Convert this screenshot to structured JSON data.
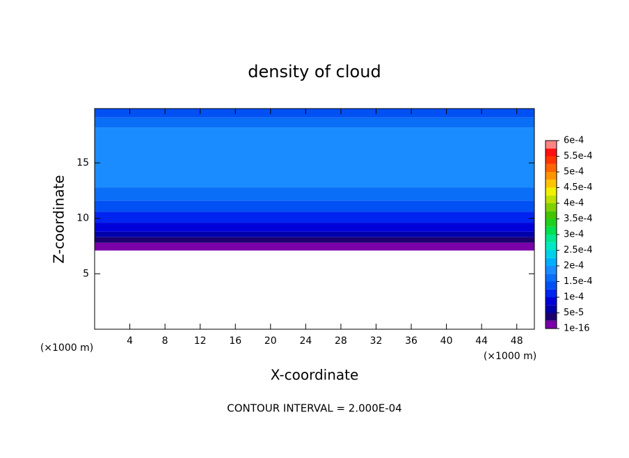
{
  "chart_data": {
    "type": "contour",
    "title": "density of cloud",
    "x_label": "X-coordinate",
    "y_label": "Z-coordinate",
    "x_unit": "(×1000 m)",
    "y_unit": "(×1000 m)",
    "footer": "CONTOUR INTERVAL = 2.000E-04",
    "xlim": [
      0,
      50
    ],
    "xticks": [
      4,
      8,
      12,
      16,
      20,
      24,
      28,
      32,
      36,
      40,
      44,
      48
    ],
    "ylim": [
      0,
      19.9
    ],
    "yticks": [
      5,
      10,
      15
    ],
    "profile": {
      "z": [
        0,
        7.1,
        7.8,
        8.3,
        8.8,
        9.6,
        10.6,
        11.6,
        12.8,
        18.2,
        19.1,
        19.9
      ],
      "values": [
        null,
        1e-05,
        3.5e-05,
        6e-05,
        8.5e-05,
        0.00011,
        0.000135,
        0.00016,
        0.000185,
        0.00016,
        0.000135
      ]
    },
    "clim": [
      1e-16,
      0.0006
    ],
    "colors": [
      "#7a00a8",
      "#1c0070",
      "#0000a8",
      "#0000d8",
      "#0024f0",
      "#0050f4",
      "#0a6ef6",
      "#1a8cff",
      "#00b0ff",
      "#00d0e8",
      "#00e8c4",
      "#00e890",
      "#00e050",
      "#20d020",
      "#44c400",
      "#80d000",
      "#c0e000",
      "#f0f000",
      "#ffc400",
      "#ff9400",
      "#ff6400",
      "#ff3400",
      "#ff1010",
      "#ff8484"
    ],
    "colorbar_ticks": [
      {
        "value": 1e-16,
        "label": "1e-16"
      },
      {
        "value": 5e-05,
        "label": "5e-5"
      },
      {
        "value": 0.0001,
        "label": "1e-4"
      },
      {
        "value": 0.00015,
        "label": "1.5e-4"
      },
      {
        "value": 0.0002,
        "label": "2e-4"
      },
      {
        "value": 0.00025,
        "label": "2.5e-4"
      },
      {
        "value": 0.0003,
        "label": "3e-4"
      },
      {
        "value": 0.00035,
        "label": "3.5e-4"
      },
      {
        "value": 0.0004,
        "label": "4e-4"
      },
      {
        "value": 0.00045,
        "label": "4.5e-4"
      },
      {
        "value": 0.0005,
        "label": "5e-4"
      },
      {
        "value": 0.00055,
        "label": "5.5e-4"
      },
      {
        "value": 0.0006,
        "label": "6e-4"
      }
    ]
  }
}
